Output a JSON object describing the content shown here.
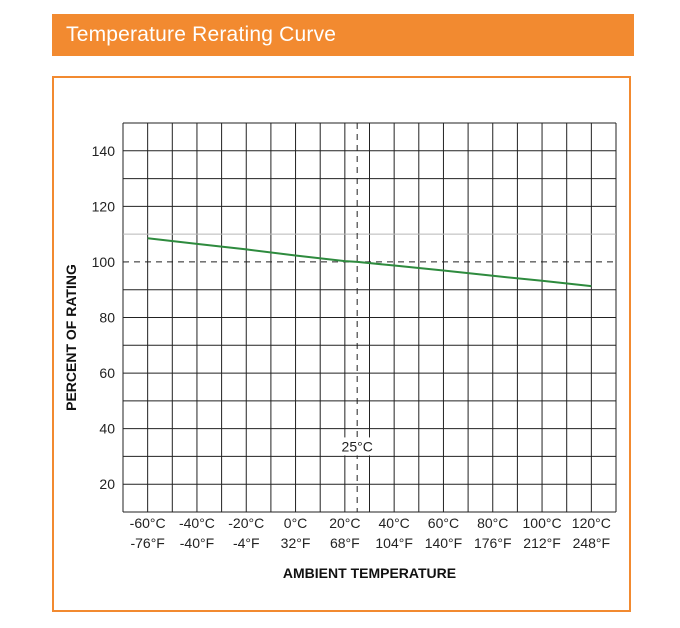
{
  "header": {
    "title": "Temperature Rerating Curve"
  },
  "colors": {
    "accent": "#f28a30",
    "curve": "#2e8b3e",
    "grid": "#222222"
  },
  "chart_data": {
    "type": "line",
    "ylabel": "PERCENT OF RATING",
    "xlabel": "AMBIENT TEMPERATURE",
    "xlim": [
      -70,
      130
    ],
    "ylim": [
      10,
      150
    ],
    "grid": true,
    "y_ticks": [
      20,
      40,
      60,
      80,
      100,
      120,
      140
    ],
    "x_ticks": [
      {
        "value": -60,
        "c": "-60°C",
        "f": "-76°F"
      },
      {
        "value": -40,
        "c": "-40°C",
        "f": "-40°F"
      },
      {
        "value": -20,
        "c": "-20°C",
        "f": "-4°F"
      },
      {
        "value": 0,
        "c": "0°C",
        "f": "32°F"
      },
      {
        "value": 20,
        "c": "20°C",
        "f": "68°F"
      },
      {
        "value": 40,
        "c": "40°C",
        "f": "104°F"
      },
      {
        "value": 60,
        "c": "60°C",
        "f": "140°F"
      },
      {
        "value": 80,
        "c": "80°C",
        "f": "176°F"
      },
      {
        "value": 100,
        "c": "100°C",
        "f": "212°F"
      },
      {
        "value": 120,
        "c": "120°C",
        "f": "248°F"
      }
    ],
    "reference_lines": {
      "x": 25,
      "x_label": "25°C",
      "y": 100,
      "upper_y": 110
    },
    "series": [
      {
        "x": [
          -60,
          -40,
          -20,
          0,
          20,
          25,
          40,
          60,
          80,
          100,
          120
        ],
        "values": [
          108.5,
          106.5,
          104.5,
          102.3,
          100.3,
          100,
          98.7,
          96.9,
          95.0,
          93.2,
          91.3
        ]
      }
    ]
  }
}
